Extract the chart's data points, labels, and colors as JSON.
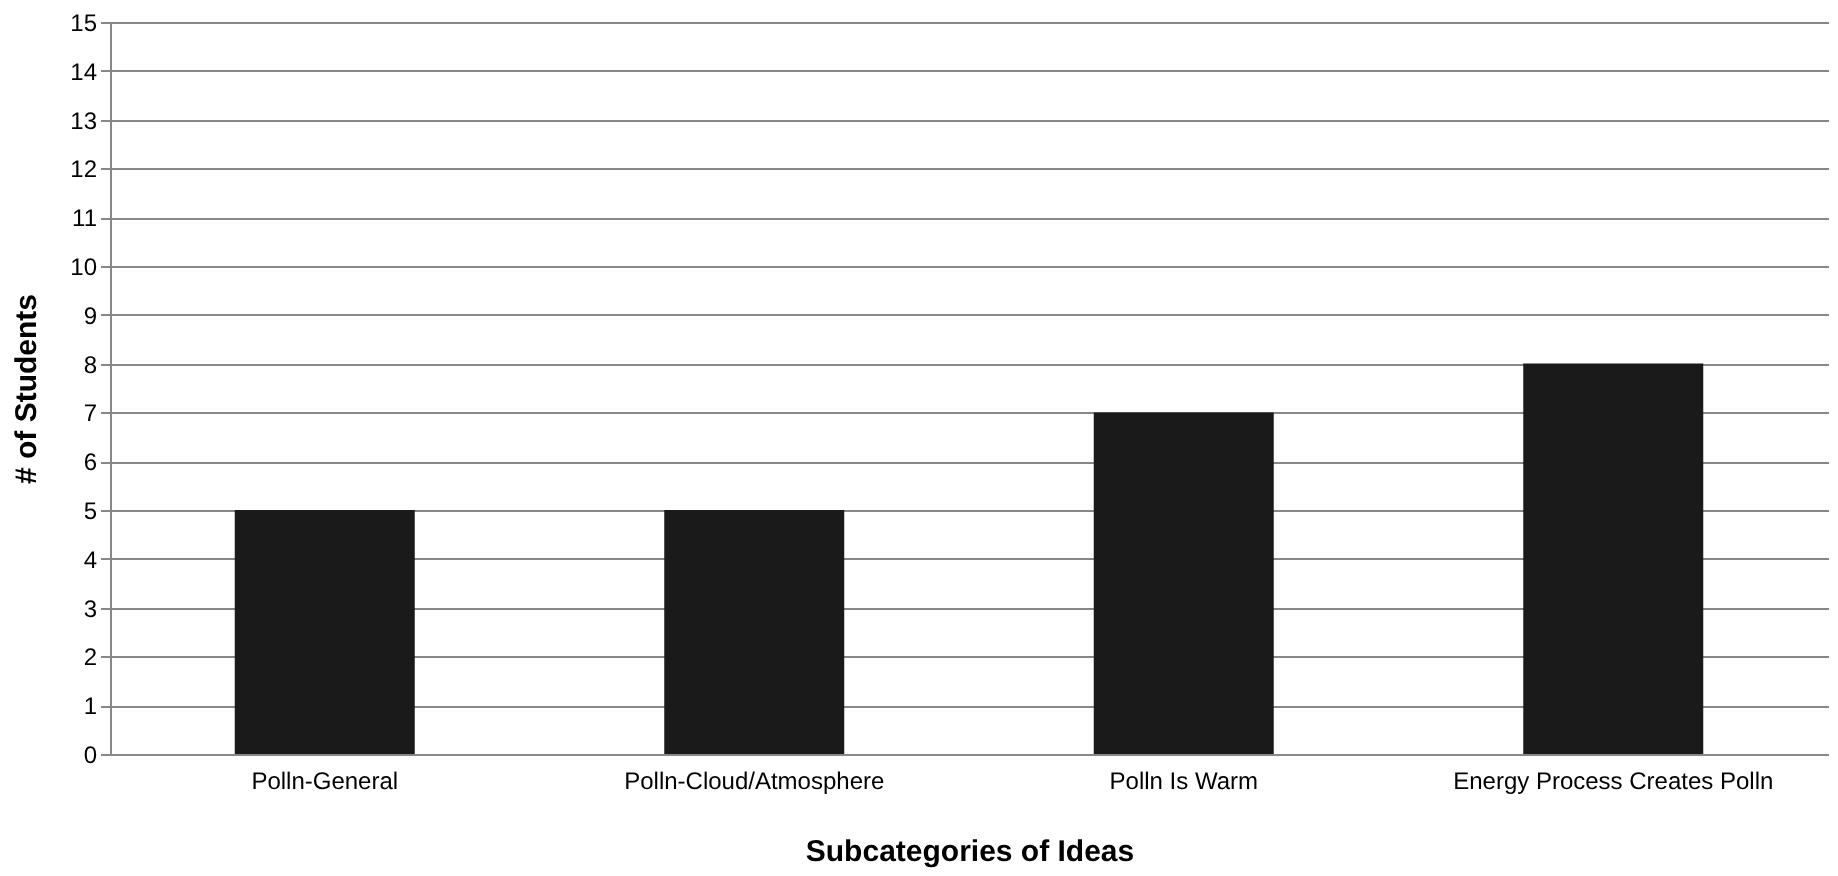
{
  "chart_data": {
    "type": "bar",
    "xlabel": "Subcategories of Ideas",
    "ylabel": "# of Students",
    "categories": [
      "Polln-General",
      "Polln-Cloud/Atmosphere",
      "Polln Is Warm",
      "Energy Process Creates Polln"
    ],
    "values": [
      5,
      5,
      7,
      8
    ],
    "color": "#1a1a1a",
    "ylim": [
      0,
      15
    ],
    "yticks": [
      0,
      1,
      2,
      3,
      4,
      5,
      6,
      7,
      8,
      9,
      10,
      11,
      12,
      13,
      14,
      15
    ],
    "grid": "y"
  }
}
